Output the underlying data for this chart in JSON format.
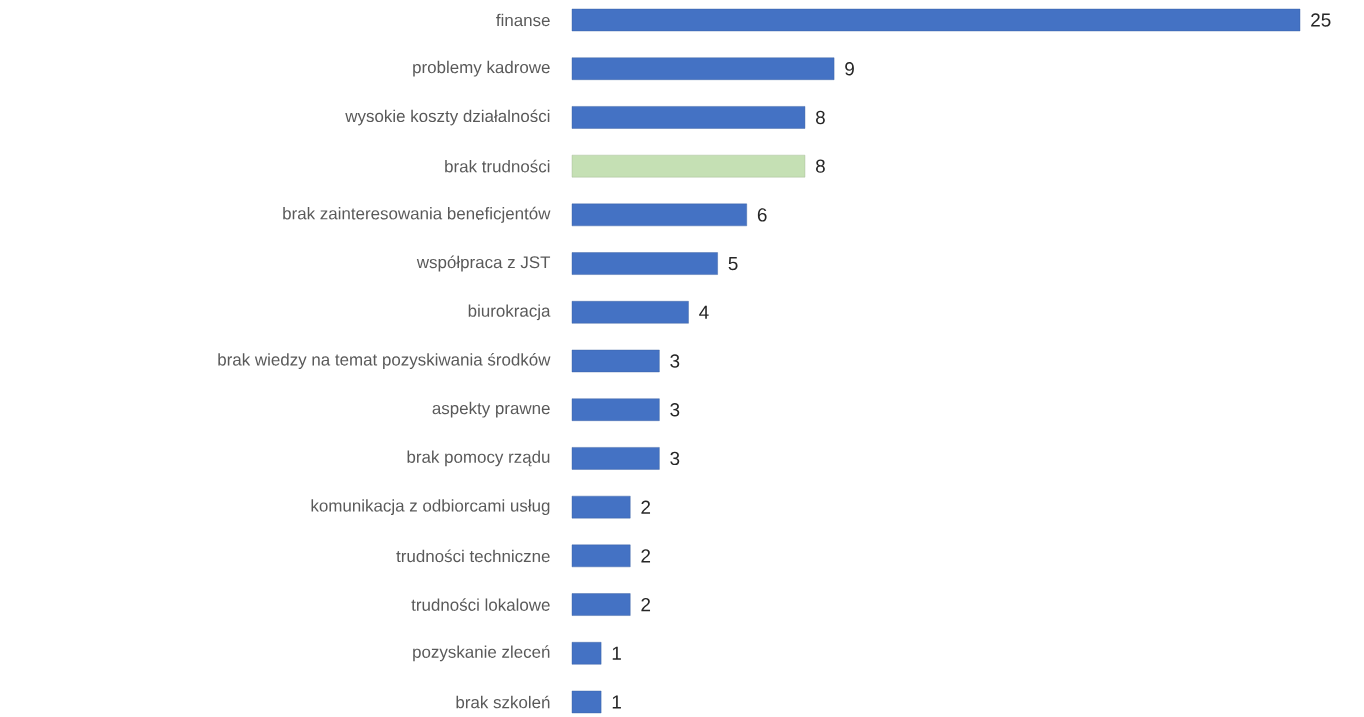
{
  "chart_data": {
    "type": "bar",
    "orientation": "horizontal",
    "categories": [
      "finanse",
      "problemy kadrowe",
      "wysokie koszty działalności",
      "brak trudności",
      "brak zainteresowania beneficjentów",
      "współpraca z JST",
      "biurokracja",
      "brak wiedzy na temat pozyskiwania środków",
      "aspekty prawne",
      "brak pomocy rządu",
      "komunikacja z odbiorcami usług",
      "trudności techniczne",
      "trudności lokalowe",
      "pozyskanie zleceń",
      "brak szkoleń"
    ],
    "values": [
      25,
      9,
      8,
      8,
      6,
      5,
      4,
      3,
      3,
      3,
      2,
      2,
      2,
      1,
      1
    ],
    "colors": [
      "#4472c4",
      "#4472c4",
      "#4472c4",
      "#c5e0b4",
      "#4472c4",
      "#4472c4",
      "#4472c4",
      "#4472c4",
      "#4472c4",
      "#4472c4",
      "#4472c4",
      "#4472c4",
      "#4472c4",
      "#4472c4",
      "#4472c4"
    ],
    "data_labels": true
  }
}
